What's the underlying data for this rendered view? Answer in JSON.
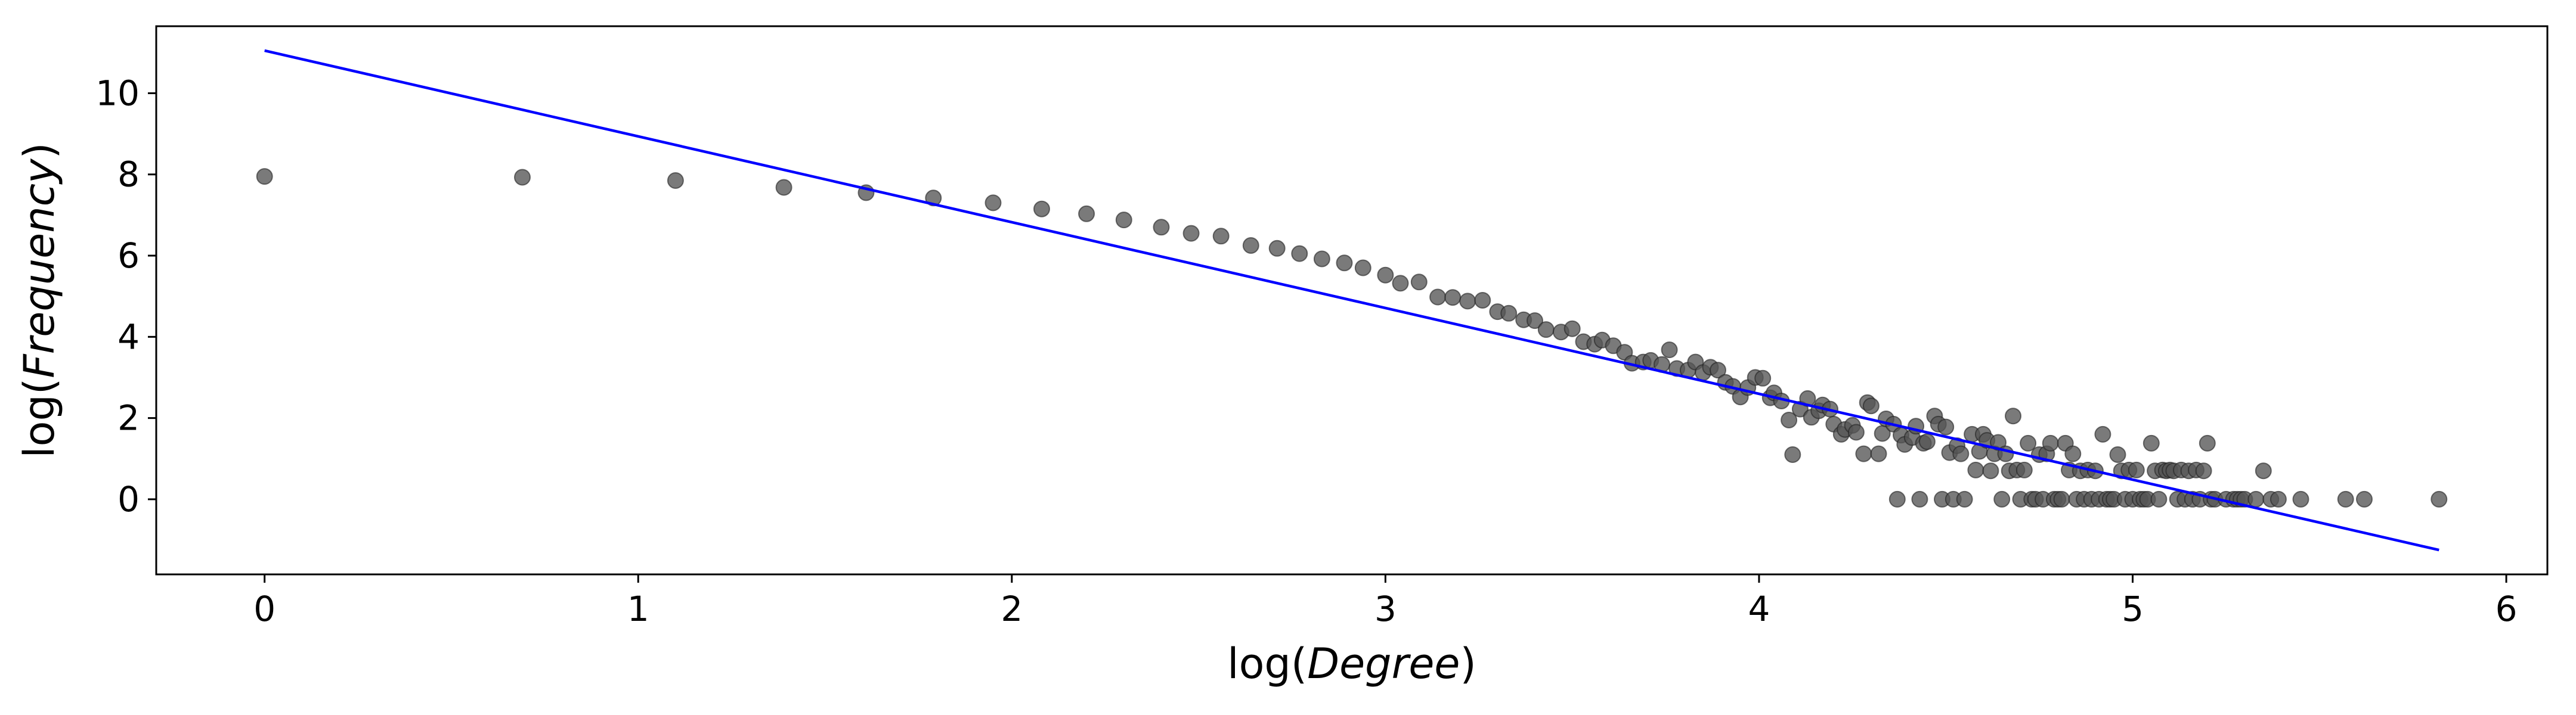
{
  "chart_data": {
    "type": "scatter",
    "title": "",
    "xlabel": {
      "prefix": "log(",
      "var": "Degree",
      "suffix": ")"
    },
    "ylabel": {
      "prefix": "log(",
      "var": "Frequency",
      "suffix": ")"
    },
    "xlim": [
      -0.29,
      6.11
    ],
    "ylim": [
      -1.85,
      11.65
    ],
    "xticks": [
      0,
      1,
      2,
      3,
      4,
      5,
      6
    ],
    "yticks": [
      0,
      2,
      4,
      6,
      8,
      10
    ],
    "xtick_labels": [
      "0",
      "1",
      "2",
      "3",
      "4",
      "5",
      "6"
    ],
    "ytick_labels": [
      "0",
      "2",
      "4",
      "6",
      "8",
      "10"
    ],
    "grid": false,
    "legend": "none",
    "colors": {
      "points": "#555555",
      "fit_line": "#0000ff",
      "axes": "#000000"
    },
    "fit_line": {
      "x": [
        0,
        5.82
      ],
      "y": [
        11.05,
        -1.25
      ]
    },
    "points": [
      [
        0,
        7.95
      ],
      [
        0.69,
        7.93
      ],
      [
        1.1,
        7.85
      ],
      [
        1.39,
        7.68
      ],
      [
        1.61,
        7.55
      ],
      [
        1.79,
        7.42
      ],
      [
        1.95,
        7.3
      ],
      [
        2.08,
        7.15
      ],
      [
        2.2,
        7.03
      ],
      [
        2.3,
        6.88
      ],
      [
        2.4,
        6.7
      ],
      [
        2.48,
        6.55
      ],
      [
        2.56,
        6.48
      ],
      [
        2.64,
        6.25
      ],
      [
        2.71,
        6.18
      ],
      [
        2.77,
        6.05
      ],
      [
        2.83,
        5.92
      ],
      [
        2.89,
        5.82
      ],
      [
        2.94,
        5.7
      ],
      [
        3.0,
        5.52
      ],
      [
        3.04,
        5.32
      ],
      [
        3.09,
        5.35
      ],
      [
        3.14,
        4.98
      ],
      [
        3.18,
        4.97
      ],
      [
        3.22,
        4.88
      ],
      [
        3.26,
        4.9
      ],
      [
        3.3,
        4.62
      ],
      [
        3.33,
        4.58
      ],
      [
        3.37,
        4.42
      ],
      [
        3.4,
        4.4
      ],
      [
        3.43,
        4.18
      ],
      [
        3.47,
        4.12
      ],
      [
        3.5,
        4.2
      ],
      [
        3.53,
        3.88
      ],
      [
        3.56,
        3.82
      ],
      [
        3.58,
        3.92
      ],
      [
        3.61,
        3.78
      ],
      [
        3.64,
        3.62
      ],
      [
        3.66,
        3.35
      ],
      [
        3.69,
        3.38
      ],
      [
        3.71,
        3.42
      ],
      [
        3.74,
        3.32
      ],
      [
        3.76,
        3.68
      ],
      [
        3.78,
        3.22
      ],
      [
        3.81,
        3.18
      ],
      [
        3.83,
        3.38
      ],
      [
        3.85,
        3.12
      ],
      [
        3.87,
        3.25
      ],
      [
        3.89,
        3.18
      ],
      [
        3.91,
        2.88
      ],
      [
        3.93,
        2.78
      ],
      [
        3.95,
        2.52
      ],
      [
        3.97,
        2.75
      ],
      [
        3.99,
        3.0
      ],
      [
        4.01,
        2.98
      ],
      [
        4.03,
        2.5
      ],
      [
        4.04,
        2.62
      ],
      [
        4.06,
        2.42
      ],
      [
        4.08,
        1.95
      ],
      [
        4.09,
        1.1
      ],
      [
        4.11,
        2.22
      ],
      [
        4.13,
        2.48
      ],
      [
        4.14,
        2.02
      ],
      [
        4.16,
        2.18
      ],
      [
        4.17,
        2.32
      ],
      [
        4.19,
        2.22
      ],
      [
        4.2,
        1.85
      ],
      [
        4.22,
        1.6
      ],
      [
        4.23,
        1.72
      ],
      [
        4.25,
        1.82
      ],
      [
        4.26,
        1.65
      ],
      [
        4.28,
        1.12
      ],
      [
        4.29,
        2.38
      ],
      [
        4.3,
        2.3
      ],
      [
        4.32,
        1.12
      ],
      [
        4.33,
        1.62
      ],
      [
        4.34,
        1.98
      ],
      [
        4.36,
        1.85
      ],
      [
        4.37,
        0.0
      ],
      [
        4.38,
        1.58
      ],
      [
        4.39,
        1.35
      ],
      [
        4.41,
        1.52
      ],
      [
        4.42,
        1.8
      ],
      [
        4.43,
        0.0
      ],
      [
        4.44,
        1.38
      ],
      [
        4.45,
        1.42
      ],
      [
        4.47,
        2.05
      ],
      [
        4.48,
        1.85
      ],
      [
        4.49,
        0.0
      ],
      [
        4.5,
        1.78
      ],
      [
        4.51,
        1.15
      ],
      [
        4.52,
        0.0
      ],
      [
        4.53,
        1.32
      ],
      [
        4.54,
        1.12
      ],
      [
        4.55,
        0.0
      ],
      [
        4.57,
        1.6
      ],
      [
        4.58,
        0.72
      ],
      [
        4.59,
        1.18
      ],
      [
        4.6,
        1.6
      ],
      [
        4.61,
        1.45
      ],
      [
        4.62,
        0.7
      ],
      [
        4.63,
        1.12
      ],
      [
        4.64,
        1.4
      ],
      [
        4.65,
        0.0
      ],
      [
        4.66,
        1.12
      ],
      [
        4.67,
        0.7
      ],
      [
        4.68,
        2.05
      ],
      [
        4.69,
        0.72
      ],
      [
        4.7,
        0.0
      ],
      [
        4.71,
        0.72
      ],
      [
        4.72,
        1.38
      ],
      [
        4.73,
        0.0
      ],
      [
        4.74,
        0.0
      ],
      [
        4.75,
        1.1
      ],
      [
        4.76,
        0.0
      ],
      [
        4.77,
        1.12
      ],
      [
        4.78,
        1.38
      ],
      [
        4.79,
        0.0
      ],
      [
        4.8,
        0.0
      ],
      [
        4.81,
        0.0
      ],
      [
        4.82,
        1.38
      ],
      [
        4.83,
        0.72
      ],
      [
        4.84,
        1.12
      ],
      [
        4.85,
        0.0
      ],
      [
        4.86,
        0.7
      ],
      [
        4.87,
        0.0
      ],
      [
        4.88,
        0.72
      ],
      [
        4.89,
        0.0
      ],
      [
        4.9,
        0.7
      ],
      [
        4.91,
        0.0
      ],
      [
        4.92,
        1.6
      ],
      [
        4.93,
        0.0
      ],
      [
        4.94,
        0.0
      ],
      [
        4.95,
        0.0
      ],
      [
        4.96,
        1.1
      ],
      [
        4.97,
        0.7
      ],
      [
        4.98,
        0.0
      ],
      [
        4.99,
        0.72
      ],
      [
        5.0,
        0.0
      ],
      [
        5.01,
        0.72
      ],
      [
        5.02,
        0.0
      ],
      [
        5.03,
        0.0
      ],
      [
        5.04,
        0.0
      ],
      [
        5.05,
        1.38
      ],
      [
        5.06,
        0.7
      ],
      [
        5.07,
        0.0
      ],
      [
        5.08,
        0.72
      ],
      [
        5.09,
        0.7
      ],
      [
        5.1,
        0.72
      ],
      [
        5.11,
        0.7
      ],
      [
        5.12,
        0.0
      ],
      [
        5.13,
        0.72
      ],
      [
        5.14,
        0.0
      ],
      [
        5.15,
        0.7
      ],
      [
        5.16,
        0.0
      ],
      [
        5.17,
        0.72
      ],
      [
        5.18,
        0.0
      ],
      [
        5.19,
        0.7
      ],
      [
        5.2,
        1.38
      ],
      [
        5.21,
        0.0
      ],
      [
        5.22,
        0.0
      ],
      [
        5.25,
        0.0
      ],
      [
        5.27,
        0.0
      ],
      [
        5.28,
        0.0
      ],
      [
        5.29,
        0.0
      ],
      [
        5.3,
        0.0
      ],
      [
        5.33,
        0.0
      ],
      [
        5.35,
        0.7
      ],
      [
        5.37,
        0.0
      ],
      [
        5.39,
        0.0
      ],
      [
        5.45,
        0.0
      ],
      [
        5.57,
        0.0
      ],
      [
        5.62,
        0.0
      ],
      [
        5.82,
        0.0
      ]
    ]
  }
}
